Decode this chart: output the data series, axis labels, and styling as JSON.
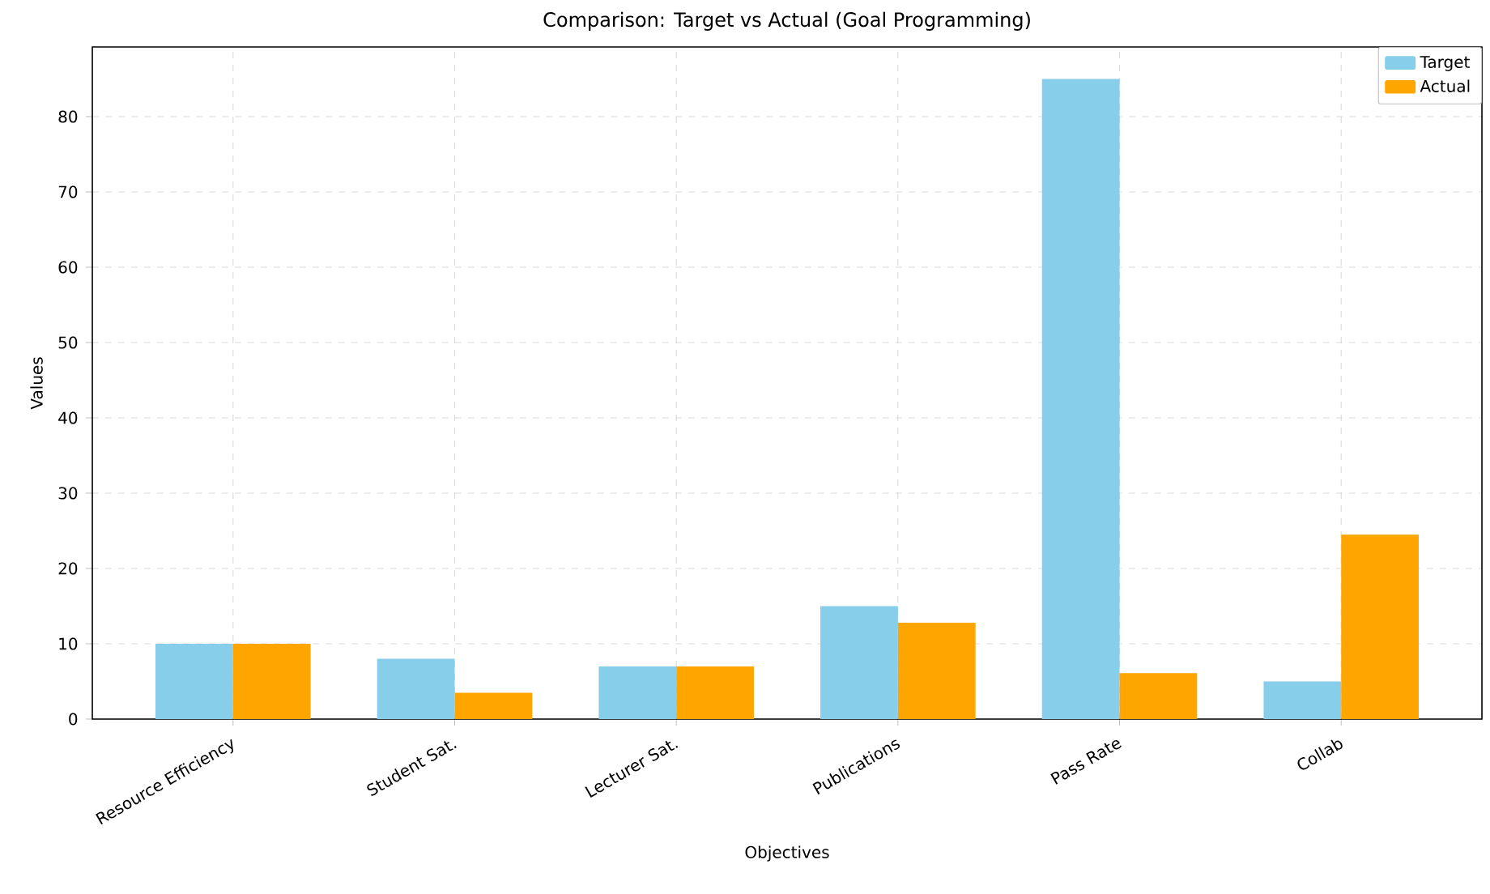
{
  "chart_data": {
    "type": "bar",
    "title": "Comparison: Target vs Actual (Goal Programming)",
    "xlabel": "Objectives",
    "ylabel": "Values",
    "categories": [
      "Resource Efficiency",
      "Student Sat.",
      "Lecturer Sat.",
      "Publications",
      "Pass Rate",
      "Collab"
    ],
    "series": [
      {
        "name": "Target",
        "color": "#87ceeb",
        "values": [
          10,
          8,
          7,
          15,
          85,
          5
        ]
      },
      {
        "name": "Actual",
        "color": "#ffa500",
        "values": [
          10,
          3.5,
          7,
          12.8,
          6.1,
          24.5
        ]
      }
    ],
    "ylim": [
      0,
      89.25
    ],
    "yticks": [
      0,
      10,
      20,
      30,
      40,
      50,
      60,
      70,
      80
    ],
    "grid": true,
    "legend": "top right"
  }
}
